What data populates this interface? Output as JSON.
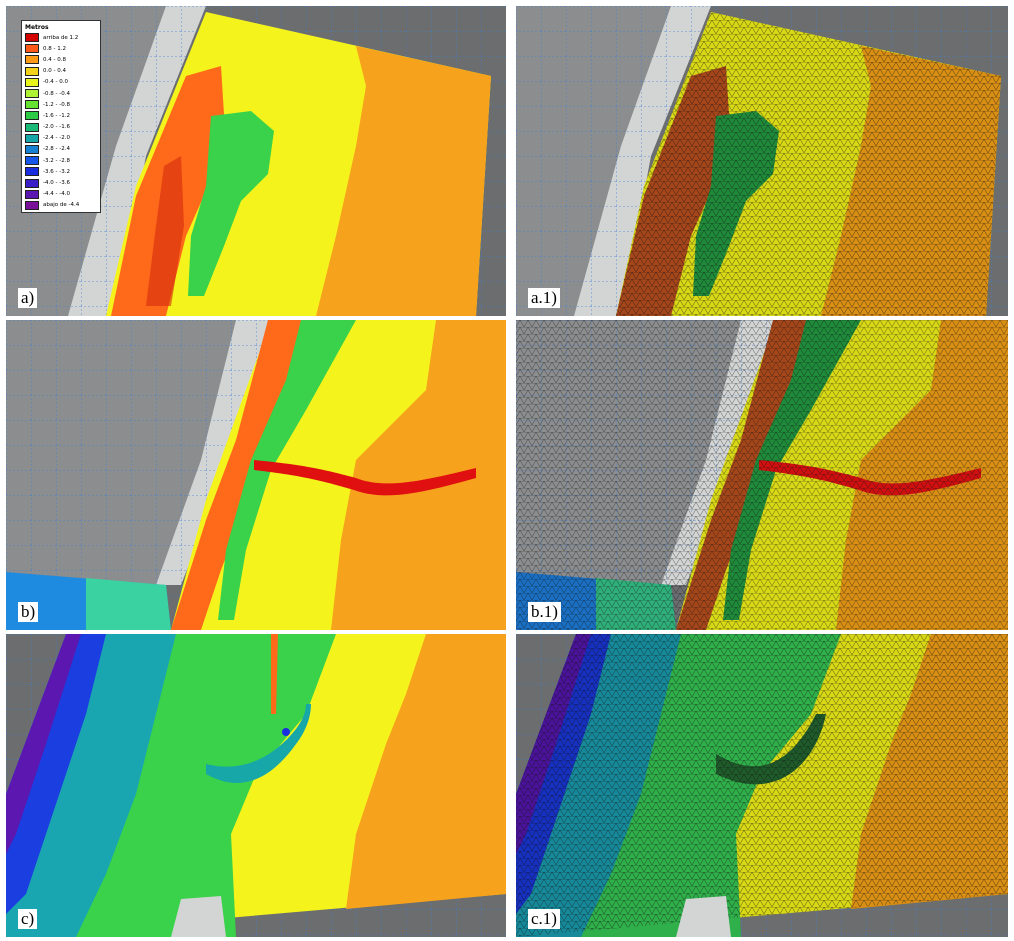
{
  "legend": {
    "title": "Metros",
    "entries": [
      {
        "label": "arriba de 1.2",
        "color": "#d40000"
      },
      {
        "label": "0.8 -   1.2",
        "color": "#ff5a1a"
      },
      {
        "label": "0.4 -   0.8",
        "color": "#ff9a18"
      },
      {
        "label": "0.0 -   0.4",
        "color": "#f3d21c"
      },
      {
        "label": "-0.4 -   0.0",
        "color": "#e8f51c"
      },
      {
        "label": "-0.8 -  -0.4",
        "color": "#aef033"
      },
      {
        "label": "-1.2 -  -0.8",
        "color": "#66e233"
      },
      {
        "label": "-1.6 -  -1.2",
        "color": "#2ecc44"
      },
      {
        "label": "-2.0 -  -1.6",
        "color": "#19b877"
      },
      {
        "label": "-2.4 -  -2.0",
        "color": "#18a7a8"
      },
      {
        "label": "-2.8 -  -2.4",
        "color": "#1882d2"
      },
      {
        "label": "-3.2 -  -2.8",
        "color": "#1656e8"
      },
      {
        "label": "-3.6 -  -3.2",
        "color": "#1a2ee0"
      },
      {
        "label": "-4.0 -  -3.6",
        "color": "#3a1fc8"
      },
      {
        "label": "-4.4 -  -4.0",
        "color": "#5c17b0"
      },
      {
        "label": "abajo de -4.4",
        "color": "#7a1199"
      }
    ]
  },
  "panels": [
    {
      "id": "a",
      "label": "a)"
    },
    {
      "id": "a1",
      "label": "a.1)"
    },
    {
      "id": "b",
      "label": "b)"
    },
    {
      "id": "b1",
      "label": "b.1)"
    },
    {
      "id": "c",
      "label": "c)"
    },
    {
      "id": "c1",
      "label": "c.1)"
    }
  ],
  "colors": {
    "background_gray": "#6b6d6f",
    "beach_light": "#c9cbcc",
    "grid_line": "#3f7fd6",
    "orange": "#f6a21c",
    "yellow": "#f4f41c",
    "green": "#39d24a",
    "red": "#e01010",
    "mesh_line": "#111111"
  }
}
